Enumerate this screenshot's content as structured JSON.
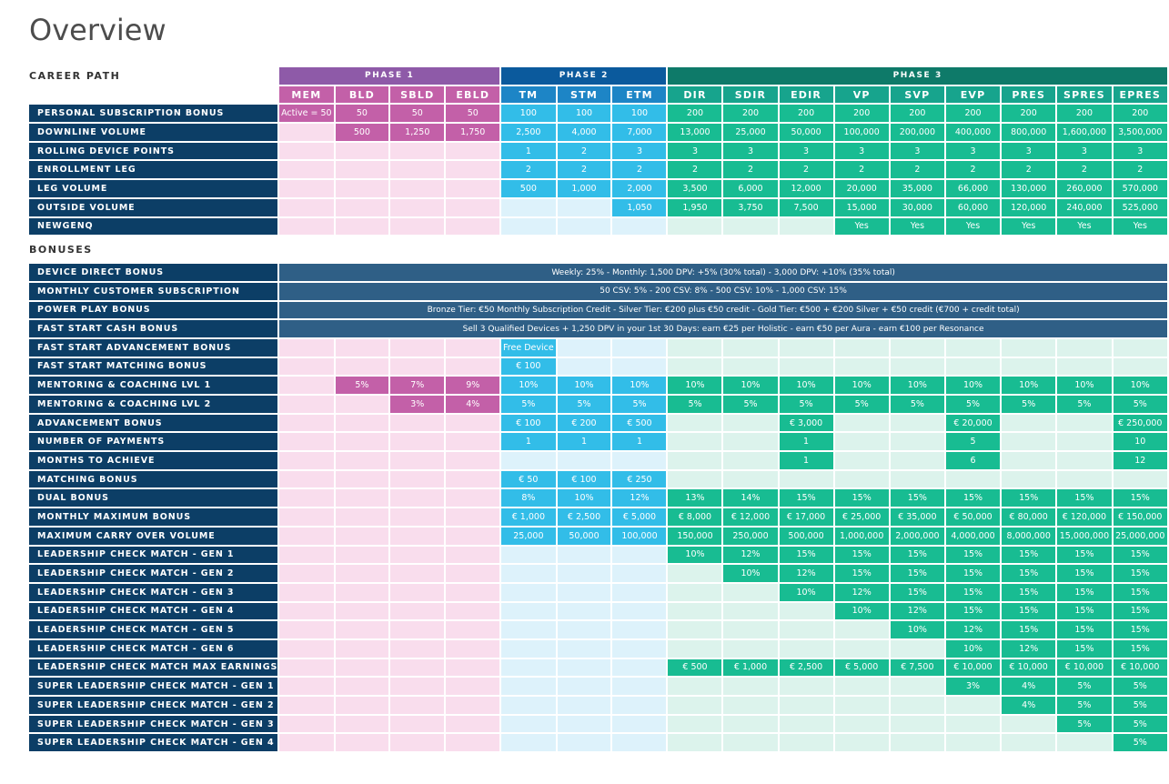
{
  "title": "Overview",
  "sections": {
    "career_path": "CAREER PATH",
    "bonuses": "BONUSES"
  },
  "phases": [
    "PHASE 1",
    "PHASE 2",
    "PHASE 3"
  ],
  "ranks": [
    "MEM",
    "BLD",
    "SBLD",
    "EBLD",
    "TM",
    "STM",
    "ETM",
    "DIR",
    "SDIR",
    "EDIR",
    "VP",
    "SVP",
    "EVP",
    "PRES",
    "SPRES",
    "EPRES"
  ],
  "career_rows": [
    {
      "label": "PERSONAL SUBSCRIPTION BONUS",
      "cells": [
        "Active = 50",
        "50",
        "50",
        "50",
        "100",
        "100",
        "100",
        "200",
        "200",
        "200",
        "200",
        "200",
        "200",
        "200",
        "200",
        "200"
      ]
    },
    {
      "label": "DOWNLINE VOLUME",
      "cells": [
        "",
        "500",
        "1,250",
        "1,750",
        "2,500",
        "4,000",
        "7,000",
        "13,000",
        "25,000",
        "50,000",
        "100,000",
        "200,000",
        "400,000",
        "800,000",
        "1,600,000",
        "3,500,000"
      ]
    },
    {
      "label": "ROLLING DEVICE POINTS",
      "cells": [
        "",
        "",
        "",
        "",
        "1",
        "2",
        "3",
        "3",
        "3",
        "3",
        "3",
        "3",
        "3",
        "3",
        "3",
        "3"
      ]
    },
    {
      "label": "ENROLLMENT LEG",
      "cells": [
        "",
        "",
        "",
        "",
        "2",
        "2",
        "2",
        "2",
        "2",
        "2",
        "2",
        "2",
        "2",
        "2",
        "2",
        "2"
      ]
    },
    {
      "label": "LEG VOLUME",
      "cells": [
        "",
        "",
        "",
        "",
        "500",
        "1,000",
        "2,000",
        "3,500",
        "6,000",
        "12,000",
        "20,000",
        "35,000",
        "66,000",
        "130,000",
        "260,000",
        "570,000"
      ]
    },
    {
      "label": "OUTSIDE VOLUME",
      "cells": [
        "",
        "",
        "",
        "",
        "",
        "",
        "1,050",
        "1,950",
        "3,750",
        "7,500",
        "15,000",
        "30,000",
        "60,000",
        "120,000",
        "240,000",
        "525,000"
      ]
    },
    {
      "label": "NEWGENQ",
      "cells": [
        "",
        "",
        "",
        "",
        "",
        "",
        "",
        "",
        "",
        "",
        "Yes",
        "Yes",
        "Yes",
        "Yes",
        "Yes",
        "Yes"
      ]
    }
  ],
  "span_rows": [
    {
      "label": "DEVICE DIRECT BONUS",
      "text": "Weekly: 25% - Monthly: 1,500 DPV: +5% (30% total) - 3,000 DPV: +10% (35% total)"
    },
    {
      "label": "MONTHLY CUSTOMER SUBSCRIPTION",
      "text": "50 CSV: 5% - 200 CSV: 8% - 500 CSV: 10% - 1,000 CSV: 15%"
    },
    {
      "label": "POWER PLAY BONUS",
      "text": "Bronze Tier: €50 Monthly Subscription Credit - Silver Tier: €200 plus €50 credit - Gold Tier: €500 + €200 Silver + €50 credit (€700 + credit total)"
    },
    {
      "label": "FAST START CASH BONUS",
      "text": "Sell 3 Qualified Devices + 1,250 DPV in your 1st 30 Days: earn €25 per Holistic - earn €50 per Aura - earn €100 per Resonance"
    }
  ],
  "bonus_rows": [
    {
      "label": "FAST START ADVANCEMENT BONUS",
      "cells": [
        "",
        "",
        "",
        "",
        "Free Device",
        "",
        "",
        "",
        "",
        "",
        "",
        "",
        "",
        "",
        "",
        ""
      ]
    },
    {
      "label": "FAST START MATCHING BONUS",
      "cells": [
        "",
        "",
        "",
        "",
        "€ 100",
        "",
        "",
        "",
        "",
        "",
        "",
        "",
        "",
        "",
        "",
        ""
      ]
    },
    {
      "label": "MENTORING & COACHING LVL 1",
      "cells": [
        "",
        "5%",
        "7%",
        "9%",
        "10%",
        "10%",
        "10%",
        "10%",
        "10%",
        "10%",
        "10%",
        "10%",
        "10%",
        "10%",
        "10%",
        "10%"
      ]
    },
    {
      "label": "MENTORING & COACHING LVL 2",
      "cells": [
        "",
        "",
        "3%",
        "4%",
        "5%",
        "5%",
        "5%",
        "5%",
        "5%",
        "5%",
        "5%",
        "5%",
        "5%",
        "5%",
        "5%",
        "5%"
      ]
    },
    {
      "label": "ADVANCEMENT BONUS",
      "cells": [
        "",
        "",
        "",
        "",
        "€ 100",
        "€ 200",
        "€ 500",
        "",
        "",
        "€ 3,000",
        "",
        "",
        "€ 20,000",
        "",
        "",
        "€ 250,000"
      ]
    },
    {
      "label": "NUMBER OF PAYMENTS",
      "cells": [
        "",
        "",
        "",
        "",
        "1",
        "1",
        "1",
        "",
        "",
        "1",
        "",
        "",
        "5",
        "",
        "",
        "10"
      ]
    },
    {
      "label": "MONTHS TO ACHIEVE",
      "cells": [
        "",
        "",
        "",
        "",
        "",
        "",
        "",
        "",
        "",
        "1",
        "",
        "",
        "6",
        "",
        "",
        "12"
      ]
    },
    {
      "label": "MATCHING BONUS",
      "cells": [
        "",
        "",
        "",
        "",
        "€ 50",
        "€ 100",
        "€ 250",
        "",
        "",
        "",
        "",
        "",
        "",
        "",
        "",
        ""
      ]
    },
    {
      "label": "DUAL BONUS",
      "cells": [
        "",
        "",
        "",
        "",
        "8%",
        "10%",
        "12%",
        "13%",
        "14%",
        "15%",
        "15%",
        "15%",
        "15%",
        "15%",
        "15%",
        "15%"
      ]
    },
    {
      "label": "MONTHLY MAXIMUM BONUS",
      "cells": [
        "",
        "",
        "",
        "",
        "€ 1,000",
        "€ 2,500",
        "€ 5,000",
        "€ 8,000",
        "€ 12,000",
        "€ 17,000",
        "€ 25,000",
        "€ 35,000",
        "€ 50,000",
        "€ 80,000",
        "€ 120,000",
        "€ 150,000"
      ]
    },
    {
      "label": "MAXIMUM CARRY OVER VOLUME",
      "cells": [
        "",
        "",
        "",
        "",
        "25,000",
        "50,000",
        "100,000",
        "150,000",
        "250,000",
        "500,000",
        "1,000,000",
        "2,000,000",
        "4,000,000",
        "8,000,000",
        "15,000,000",
        "25,000,000"
      ]
    },
    {
      "label": "LEADERSHIP CHECK MATCH - GEN 1",
      "cells": [
        "",
        "",
        "",
        "",
        "",
        "",
        "",
        "10%",
        "12%",
        "15%",
        "15%",
        "15%",
        "15%",
        "15%",
        "15%",
        "15%"
      ]
    },
    {
      "label": "LEADERSHIP CHECK MATCH - GEN 2",
      "cells": [
        "",
        "",
        "",
        "",
        "",
        "",
        "",
        "",
        "10%",
        "12%",
        "15%",
        "15%",
        "15%",
        "15%",
        "15%",
        "15%"
      ]
    },
    {
      "label": "LEADERSHIP CHECK MATCH - GEN 3",
      "cells": [
        "",
        "",
        "",
        "",
        "",
        "",
        "",
        "",
        "",
        "10%",
        "12%",
        "15%",
        "15%",
        "15%",
        "15%",
        "15%"
      ]
    },
    {
      "label": "LEADERSHIP CHECK MATCH - GEN 4",
      "cells": [
        "",
        "",
        "",
        "",
        "",
        "",
        "",
        "",
        "",
        "",
        "10%",
        "12%",
        "15%",
        "15%",
        "15%",
        "15%"
      ]
    },
    {
      "label": "LEADERSHIP CHECK MATCH - GEN 5",
      "cells": [
        "",
        "",
        "",
        "",
        "",
        "",
        "",
        "",
        "",
        "",
        "",
        "10%",
        "12%",
        "15%",
        "15%",
        "15%"
      ]
    },
    {
      "label": "LEADERSHIP CHECK MATCH - GEN 6",
      "cells": [
        "",
        "",
        "",
        "",
        "",
        "",
        "",
        "",
        "",
        "",
        "",
        "",
        "10%",
        "12%",
        "15%",
        "15%"
      ]
    },
    {
      "label": "LEADERSHIP CHECK MATCH MAX EARNINGS",
      "cells": [
        "",
        "",
        "",
        "",
        "",
        "",
        "",
        "€ 500",
        "€ 1,000",
        "€ 2,500",
        "€ 5,000",
        "€ 7,500",
        "€ 10,000",
        "€ 10,000",
        "€ 10,000",
        "€ 10,000"
      ]
    },
    {
      "label": "SUPER LEADERSHIP CHECK MATCH - GEN 1",
      "cells": [
        "",
        "",
        "",
        "",
        "",
        "",
        "",
        "",
        "",
        "",
        "",
        "",
        "3%",
        "4%",
        "5%",
        "5%"
      ]
    },
    {
      "label": "SUPER LEADERSHIP CHECK MATCH - GEN 2",
      "cells": [
        "",
        "",
        "",
        "",
        "",
        "",
        "",
        "",
        "",
        "",
        "",
        "",
        "",
        "4%",
        "5%",
        "5%"
      ]
    },
    {
      "label": "SUPER LEADERSHIP CHECK MATCH - GEN 3",
      "cells": [
        "",
        "",
        "",
        "",
        "",
        "",
        "",
        "",
        "",
        "",
        "",
        "",
        "",
        "",
        "5%",
        "5%"
      ]
    },
    {
      "label": "SUPER LEADERSHIP CHECK MATCH - GEN 4",
      "cells": [
        "",
        "",
        "",
        "",
        "",
        "",
        "",
        "",
        "",
        "",
        "",
        "",
        "",
        "",
        "",
        "5%"
      ]
    }
  ],
  "colors": {
    "label_bg": "#0c3e66",
    "span_bg": "#2f5f86",
    "phase1_filled": "#c360a8",
    "phase1_empty": "#f9dded",
    "phase2_filled": "#32bde8",
    "phase2_empty": "#ddf2fb",
    "phase3_filled": "#18bc92",
    "phase3_empty": "#dcf3ec",
    "phase1_header": "#8e5aa8",
    "phase2_header": "#0b5a9d",
    "phase3_header": "#0e7a69"
  }
}
